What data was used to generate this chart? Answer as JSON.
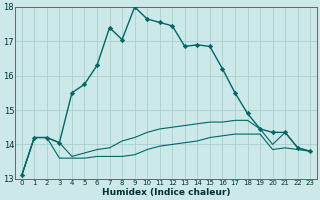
{
  "xlabel": "Humidex (Indice chaleur)",
  "x": [
    0,
    1,
    2,
    3,
    4,
    5,
    6,
    7,
    8,
    9,
    10,
    11,
    12,
    13,
    14,
    15,
    16,
    17,
    18,
    19,
    20,
    21,
    22,
    23
  ],
  "line_main": [
    13.1,
    14.2,
    14.2,
    14.05,
    15.5,
    15.75,
    16.3,
    17.4,
    17.05,
    18.0,
    17.65,
    17.55,
    17.45,
    16.85,
    16.9,
    16.85,
    16.2,
    15.5,
    14.9,
    14.45,
    14.35,
    14.35,
    13.9,
    13.8
  ],
  "line_upper": [
    13.1,
    14.2,
    14.2,
    14.05,
    13.65,
    13.75,
    13.85,
    13.9,
    14.1,
    14.2,
    14.35,
    14.45,
    14.5,
    14.55,
    14.6,
    14.65,
    14.65,
    14.7,
    14.7,
    14.45,
    14.0,
    14.35,
    13.9,
    13.8
  ],
  "line_lower": [
    13.1,
    14.2,
    14.2,
    13.6,
    13.6,
    13.6,
    13.65,
    13.65,
    13.65,
    13.7,
    13.85,
    13.95,
    14.0,
    14.05,
    14.1,
    14.2,
    14.25,
    14.3,
    14.3,
    14.3,
    13.85,
    13.9,
    13.85,
    13.8
  ],
  "bg_color": "#cce8e8",
  "grid_color": "#aacece",
  "line_color": "#006666",
  "ylim": [
    13,
    18
  ],
  "xlim": [
    -0.5,
    23.5
  ]
}
